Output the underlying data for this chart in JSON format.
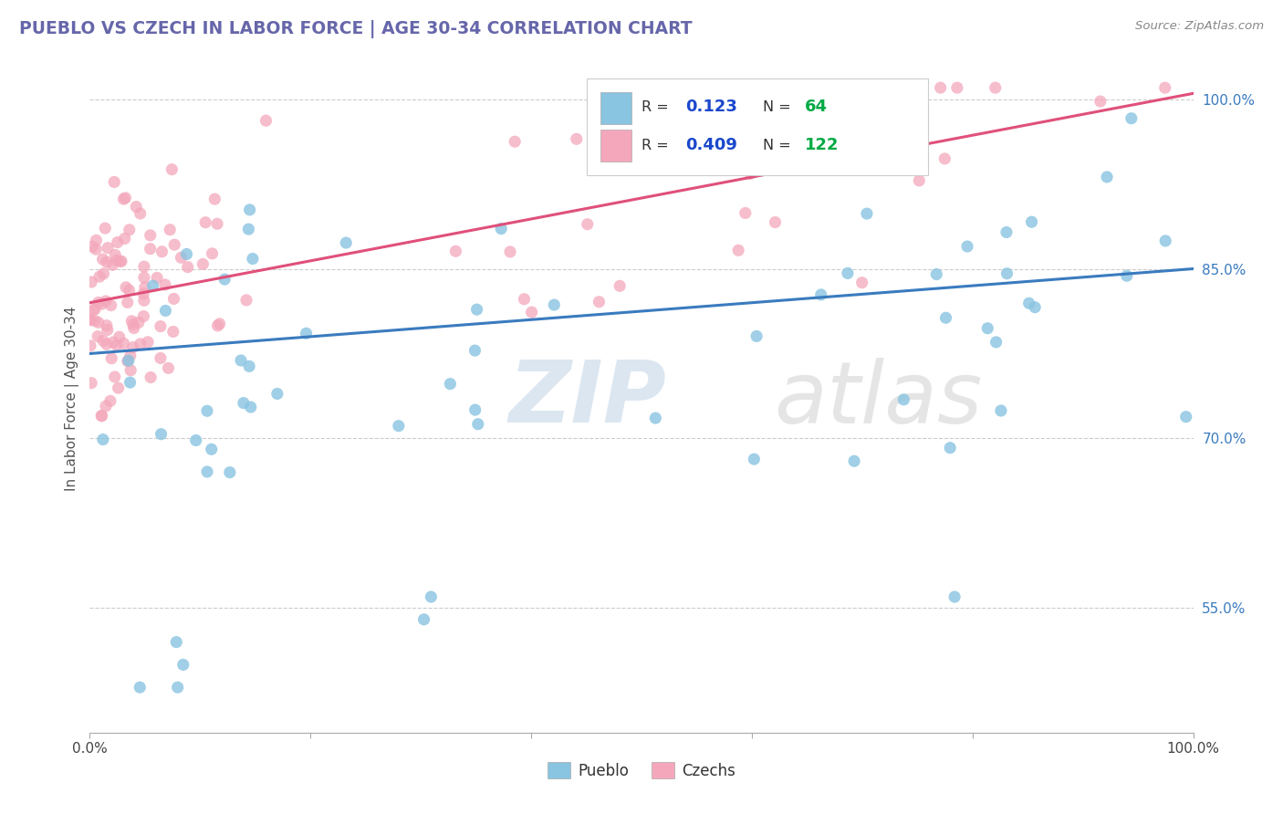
{
  "title": "PUEBLO VS CZECH IN LABOR FORCE | AGE 30-34 CORRELATION CHART",
  "source_text": "Source: ZipAtlas.com",
  "ylabel": "In Labor Force | Age 30-34",
  "xlim": [
    0.0,
    1.0
  ],
  "ylim": [
    0.44,
    1.03
  ],
  "ytick_labels": [
    "55.0%",
    "70.0%",
    "85.0%",
    "100.0%"
  ],
  "ytick_values": [
    0.55,
    0.7,
    0.85,
    1.0
  ],
  "pueblo_color": "#89c4e1",
  "czech_color": "#f4a7bb",
  "pueblo_line_color": "#3a7bbf",
  "czech_line_color": "#e0507a",
  "r_pueblo": 0.123,
  "n_pueblo": 64,
  "r_czech": 0.409,
  "n_czech": 122,
  "legend_r_color": "#1a47cc",
  "legend_n_color": "#00aa44",
  "watermark_zip": "ZIP",
  "watermark_atlas": "atlas",
  "background_color": "#ffffff",
  "title_color": "#6666aa",
  "pueblo_line_start_y": 0.775,
  "pueblo_line_end_y": 0.85,
  "czech_line_start_y": 0.82,
  "czech_line_end_y": 1.005
}
